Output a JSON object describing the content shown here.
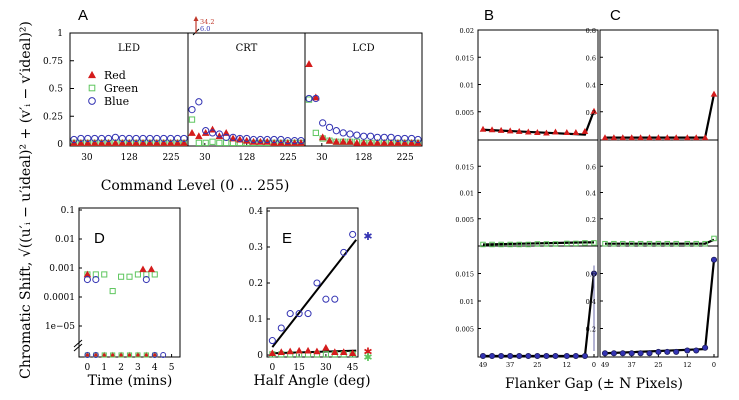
{
  "colors": {
    "red": "#d41c1c",
    "green": "#5fc65f",
    "blue": "#3333b3",
    "fit": "#000000",
    "annot": "#c0392b"
  },
  "ylabel": "Chromatic Shift, √((u′ᵢ − u′ideal)² + (v′ᵢ − v′ideal)²)",
  "chart_data": [
    {
      "id": "A",
      "type": "scatter",
      "letter": "A",
      "xlabel": "Command Level (0 … 255)",
      "yticks": [
        "0",
        "0.25",
        "0.5",
        "0.75",
        "1"
      ],
      "ylim": [
        0,
        1
      ],
      "legend": [
        "Red",
        "Green",
        "Blue"
      ],
      "subpanels": [
        {
          "name": "LED",
          "xlim": [
            0,
            255
          ],
          "xticks": [
            "30",
            "128",
            "225"
          ],
          "x": [
            0,
            16,
            32,
            48,
            64,
            80,
            96,
            112,
            128,
            144,
            160,
            176,
            192,
            208,
            224,
            240,
            255
          ],
          "red": [
            0.01,
            0.01,
            0.01,
            0.01,
            0.01,
            0.01,
            0.01,
            0.01,
            0.01,
            0.01,
            0.01,
            0.01,
            0.01,
            0.01,
            0.01,
            0.01,
            0.01
          ],
          "green": [
            0.01,
            0.01,
            0.01,
            0.01,
            0.01,
            0.01,
            0.01,
            0.01,
            0.01,
            0.01,
            0.01,
            0.01,
            0.01,
            0.01,
            0.01,
            0.01,
            0.01
          ],
          "blue": [
            0.04,
            0.05,
            0.05,
            0.05,
            0.05,
            0.05,
            0.06,
            0.05,
            0.05,
            0.05,
            0.05,
            0.05,
            0.05,
            0.05,
            0.05,
            0.05,
            0.05
          ]
        },
        {
          "name": "CRT",
          "xlim": [
            0,
            255
          ],
          "xticks": [
            "30",
            "128",
            "225"
          ],
          "x": [
            0,
            16,
            32,
            48,
            64,
            80,
            96,
            112,
            128,
            144,
            160,
            176,
            192,
            208,
            224,
            240,
            255
          ],
          "red": [
            0.1,
            0.07,
            0.1,
            0.13,
            0.07,
            0.1,
            0.05,
            0.04,
            0.03,
            0.02,
            0.02,
            0.02,
            0.01,
            0.01,
            0.01,
            0.01,
            0.01
          ],
          "green": [
            0.22,
            0.01,
            0.01,
            0.02,
            0.01,
            0.01,
            0.01,
            0.01,
            0.01,
            0.01,
            0.01,
            0.01,
            0.01,
            0.01,
            0.01,
            0.01,
            0.01
          ],
          "blue": [
            0.31,
            0.38,
            0.12,
            0.1,
            0.09,
            0.06,
            0.06,
            0.05,
            0.05,
            0.04,
            0.04,
            0.04,
            0.04,
            0.04,
            0.03,
            0.03,
            0.03
          ],
          "annotations": [
            "34.2",
            "6.0"
          ]
        },
        {
          "name": "LCD",
          "xlim": [
            0,
            255
          ],
          "xticks": [
            "30",
            "128",
            "225"
          ],
          "x": [
            0,
            16,
            32,
            48,
            64,
            80,
            96,
            112,
            128,
            144,
            160,
            176,
            192,
            208,
            224,
            240,
            255
          ],
          "red": [
            0.72,
            0.42,
            0.06,
            0.03,
            0.02,
            0.02,
            0.02,
            0.01,
            0.01,
            0.01,
            0.01,
            0.01,
            0.01,
            0.01,
            0.01,
            0.01,
            0.01
          ],
          "green": [
            0.4,
            0.1,
            0.05,
            0.03,
            0.02,
            0.02,
            0.02,
            0.02,
            0.01,
            0.01,
            0.01,
            0.01,
            0.01,
            0.01,
            0.01,
            0.01,
            0.01
          ],
          "blue": [
            0.41,
            0.41,
            0.19,
            0.15,
            0.12,
            0.1,
            0.09,
            0.08,
            0.07,
            0.07,
            0.06,
            0.06,
            0.06,
            0.05,
            0.05,
            0.05,
            0.04
          ]
        }
      ]
    },
    {
      "id": "B",
      "type": "line",
      "letter": "B",
      "xlabel": "Flanker Gap (± N Pixels)",
      "xticks": [
        "49",
        "37",
        "25",
        "12",
        "0"
      ],
      "rows": [
        {
          "series": "red",
          "ylim": [
            0,
            0.02
          ],
          "yticks": [
            "0.005",
            "0.01",
            "0.015",
            "0.02"
          ],
          "x": [
            49,
            45,
            41,
            37,
            33,
            29,
            25,
            21,
            17,
            12,
            8,
            4,
            0
          ],
          "points": [
            0.0018,
            0.0017,
            0.0016,
            0.0015,
            0.0014,
            0.0013,
            0.0012,
            0.0011,
            0.0013,
            0.0012,
            0.0012,
            0.0014,
            0.0051
          ],
          "fit": [
            [
              49,
              0.0017
            ],
            [
              4,
              0.0008
            ],
            [
              0,
              0.0052
            ]
          ]
        },
        {
          "series": "green",
          "ylim": [
            0,
            0.02
          ],
          "yticks": [
            "0.005",
            "0.01",
            "0.015"
          ],
          "x": [
            49,
            45,
            41,
            37,
            33,
            29,
            25,
            21,
            17,
            12,
            8,
            4,
            0
          ],
          "points": [
            0.0001,
            0.0001,
            0.0001,
            0.0001,
            0.0001,
            0.0001,
            0.0002,
            0.0002,
            0.0002,
            0.0003,
            0.0003,
            0.0004,
            0.0004
          ],
          "fit": [
            [
              49,
              0.0001
            ],
            [
              4,
              0.0005
            ],
            [
              0,
              0.0005
            ]
          ]
        },
        {
          "series": "blue",
          "ylim": [
            0,
            0.02
          ],
          "yticks": [
            "0.005",
            "0.01",
            "0.015"
          ],
          "x": [
            49,
            45,
            41,
            37,
            33,
            29,
            25,
            21,
            17,
            12,
            8,
            4,
            0
          ],
          "points": [
            0,
            0,
            0,
            0,
            0,
            0,
            0,
            0,
            0,
            0,
            0,
            0,
            0.015
          ],
          "fit": [
            [
              49,
              0
            ],
            [
              4,
              0
            ],
            [
              0,
              0.0152
            ]
          ]
        }
      ]
    },
    {
      "id": "C",
      "type": "line",
      "letter": "C",
      "xticks": [
        "49",
        "37",
        "25",
        "12",
        "0"
      ],
      "rows": [
        {
          "series": "red",
          "ylim": [
            0,
            0.8
          ],
          "yticks": [
            "0.2",
            "0.4",
            "0.6",
            "0.8"
          ],
          "x": [
            49,
            45,
            41,
            37,
            33,
            29,
            25,
            21,
            17,
            12,
            8,
            4,
            0
          ],
          "points": [
            0.01,
            0.01,
            0.01,
            0.01,
            0.01,
            0.01,
            0.01,
            0.01,
            0.01,
            0.01,
            0.01,
            0.01,
            0.33
          ],
          "fit": [
            [
              49,
              0.01
            ],
            [
              4,
              0.01
            ],
            [
              0,
              0.33
            ]
          ]
        },
        {
          "series": "green",
          "ylim": [
            0,
            0.8
          ],
          "yticks": [
            "0.2",
            "0.4",
            "0.6"
          ],
          "x": [
            49,
            45,
            41,
            37,
            33,
            29,
            25,
            21,
            17,
            12,
            8,
            4,
            0
          ],
          "points": [
            0.01,
            0.01,
            0.01,
            0.01,
            0.01,
            0.01,
            0.01,
            0.01,
            0.01,
            0.01,
            0.01,
            0.01,
            0.05
          ],
          "fit": [
            [
              49,
              0.01
            ],
            [
              4,
              0.01
            ],
            [
              0,
              0.04
            ]
          ]
        },
        {
          "series": "blue",
          "ylim": [
            0,
            0.8
          ],
          "yticks": [
            "0.2",
            "0.4",
            "0.6"
          ],
          "x": [
            49,
            45,
            41,
            37,
            33,
            29,
            25,
            21,
            17,
            12,
            8,
            4,
            0
          ],
          "points": [
            0.02,
            0.02,
            0.02,
            0.02,
            0.02,
            0.02,
            0.03,
            0.03,
            0.03,
            0.04,
            0.04,
            0.06,
            0.7
          ],
          "fit": [
            [
              49,
              0.02
            ],
            [
              4,
              0.05
            ],
            [
              0,
              0.7
            ]
          ]
        }
      ]
    },
    {
      "id": "D",
      "type": "scatter",
      "letter": "D",
      "scale": "log",
      "xlabel": "Time (mins)",
      "xticks": [
        "0",
        "1",
        "2",
        "3",
        "4",
        "5"
      ],
      "xlim": [
        -0.5,
        5.5
      ],
      "yticks": [
        "1e−05",
        "0.0001",
        "0.001",
        "0.01",
        "0.1"
      ],
      "red": {
        "x": [
          0,
          3.3,
          3.8
        ],
        "y": [
          0.0006,
          0.0009,
          0.0009
        ]
      },
      "green": {
        "x": [
          0,
          0.5,
          1,
          1.5,
          2,
          2.5,
          3,
          3.5,
          4
        ],
        "y": [
          0.0006,
          0.0006,
          0.0006,
          0.00016,
          0.0005,
          0.0005,
          0.0006,
          0.0006,
          0.0006
        ]
      },
      "blue": {
        "x": [
          0,
          0.5,
          3.5
        ],
        "y": [
          0.0004,
          0.0004,
          0.0004
        ]
      },
      "zero_red": {
        "x": [
          0,
          0.5,
          1,
          1.5,
          2,
          2.5,
          3,
          3.5,
          4
        ]
      },
      "zero_green": {
        "x": [
          0,
          0.5,
          1,
          1.5,
          2,
          2.5,
          3,
          3.5,
          4
        ]
      },
      "zero_blue": {
        "x": [
          0,
          0.5,
          4,
          4.5
        ]
      }
    },
    {
      "id": "E",
      "type": "scatter",
      "letter": "E",
      "xlabel": "Half Angle (deg)",
      "xticks": [
        "0",
        "15",
        "30",
        "45"
      ],
      "xlim": [
        -3,
        48
      ],
      "yticks": [
        "0",
        "0.1",
        "0.2",
        "0.3",
        "0.4"
      ],
      "ylim": [
        0,
        0.4
      ],
      "blue": {
        "x": [
          0,
          5,
          10,
          15,
          20,
          25,
          30,
          35,
          40,
          45
        ],
        "y": [
          0.04,
          0.075,
          0.115,
          0.115,
          0.115,
          0.2,
          0.155,
          0.155,
          0.285,
          0.335
        ]
      },
      "red": {
        "x": [
          0,
          5,
          10,
          15,
          20,
          25,
          30,
          35,
          40,
          45
        ],
        "y": [
          0.005,
          0.008,
          0.01,
          0.012,
          0.012,
          0.01,
          0.02,
          0.008,
          0.008,
          0.005
        ]
      },
      "green": {
        "x": [
          0,
          5,
          10,
          15,
          20,
          25,
          30,
          35,
          40,
          45
        ],
        "y": [
          0.002,
          0.002,
          0.002,
          0.002,
          0.002,
          0.002,
          0.002,
          0.002,
          0.002,
          0.002
        ]
      },
      "fit_blue": [
        [
          0,
          0.022
        ],
        [
          47,
          0.32
        ]
      ],
      "fit_red": [
        [
          0,
          0.005
        ],
        [
          47,
          0.012
        ]
      ],
      "outside": {
        "blue": 0.33,
        "red": 0.01,
        "green": 0.003
      }
    }
  ]
}
